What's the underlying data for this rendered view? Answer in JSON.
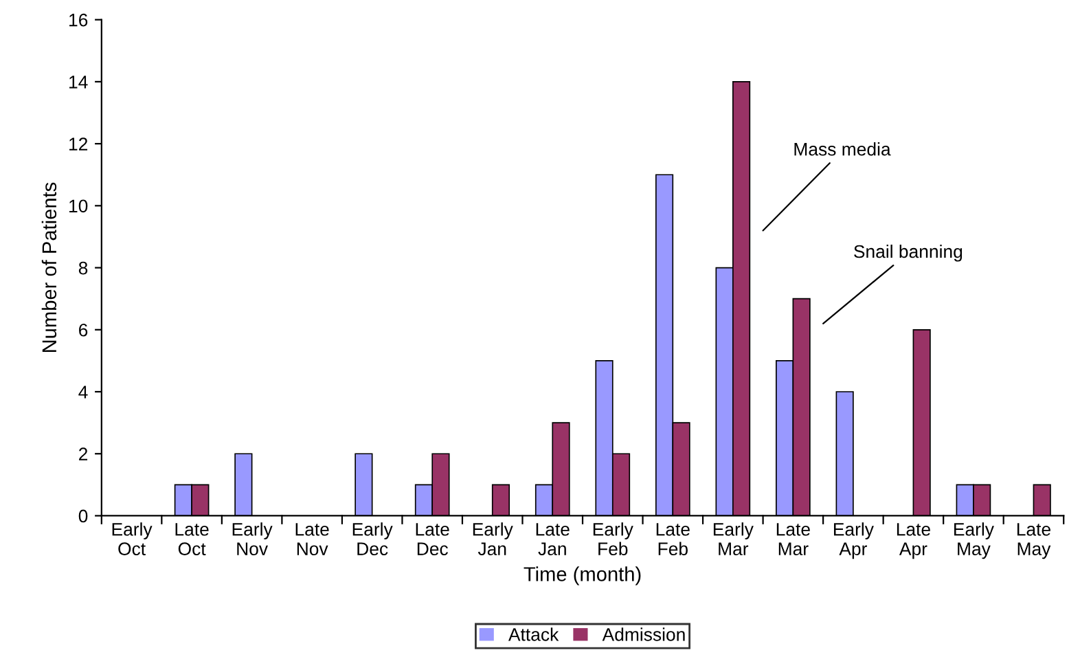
{
  "chart_data": {
    "type": "bar",
    "xlabel": "Time (month)",
    "ylabel": "Number of Patients",
    "categories": [
      "Early\nOct",
      "Late\nOct",
      "Early\nNov",
      "Late\nNov",
      "Early\nDec",
      "Late\nDec",
      "Early\nJan",
      "Late\nJan",
      "Early\nFeb",
      "Late\nFeb",
      "Early\nMar",
      "Late\nMar",
      "Early\nApr",
      "Late\nApr",
      "Early\nMay",
      "Late\nMay"
    ],
    "series": [
      {
        "name": "Attack",
        "color": "#9999ff",
        "values": [
          0,
          1,
          2,
          0,
          2,
          1,
          0,
          1,
          5,
          11,
          8,
          5,
          4,
          0,
          1,
          0
        ]
      },
      {
        "name": "Admission",
        "color": "#993366",
        "values": [
          0,
          1,
          0,
          0,
          0,
          2,
          1,
          3,
          2,
          3,
          14,
          7,
          0,
          6,
          1,
          1
        ]
      }
    ],
    "annotations": [
      "Mass media",
      "Snail banning"
    ],
    "ylim": [
      0,
      16
    ],
    "yticks": [
      0,
      2,
      4,
      6,
      8,
      10,
      12,
      14,
      16
    ],
    "grid": false,
    "legend": "bottom"
  }
}
